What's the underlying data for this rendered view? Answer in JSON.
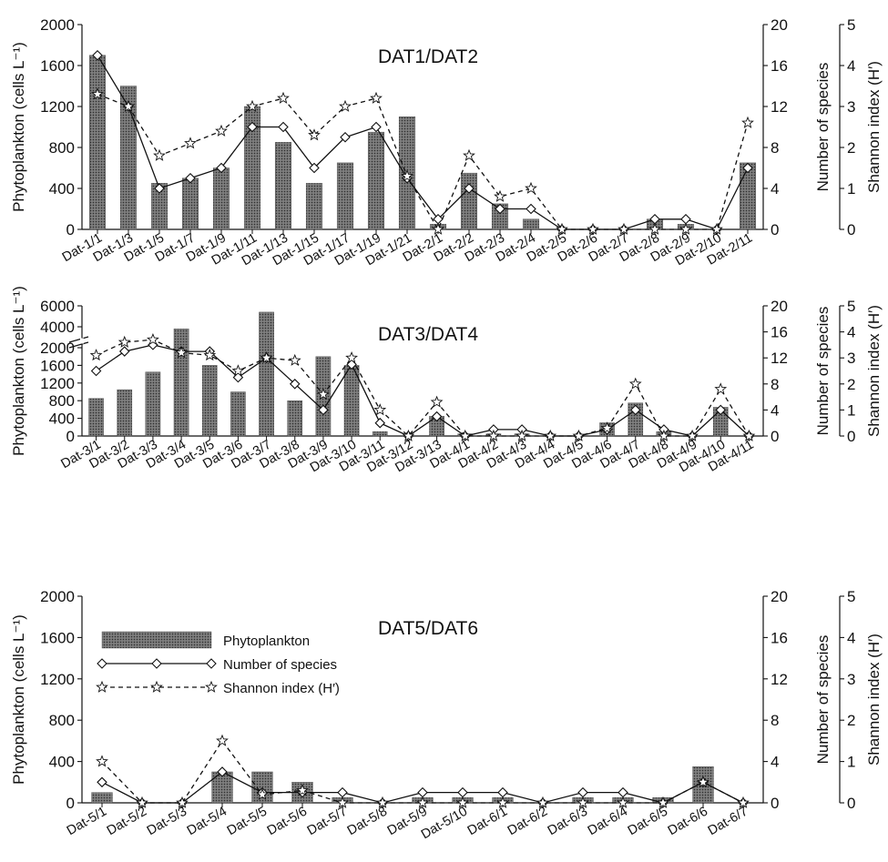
{
  "labels": {
    "yaxis_left": "Phytoplankton (cells L⁻¹)",
    "yaxis_species": "Number of species",
    "yaxis_shannon": "Shannon index (H′)"
  },
  "chart_data": [
    {
      "type": "bar",
      "title": "DAT1/DAT2",
      "categories": [
        "Dat-1/1",
        "Dat-1/3",
        "Dat-1/5",
        "Dat-1/7",
        "Dat-1/9",
        "Dat-1/11",
        "Dat-1/13",
        "Dat-1/15",
        "Dat-1/17",
        "Dat-1/19",
        "Dat-1/21",
        "Dat-2/1",
        "Dat-2/2",
        "Dat-2/3",
        "Dat-2/4",
        "Dat-2/5",
        "Dat-2/6",
        "Dat-2/7",
        "Dat-2/8",
        "Dat-2/9",
        "Dat-2/10",
        "Dat-2/11"
      ],
      "y_left_ticks": [
        "0",
        "400",
        "800",
        "1200",
        "1600",
        "2000"
      ],
      "y_mid_ticks": [
        "0",
        "4",
        "8",
        "12",
        "16",
        "20"
      ],
      "y_right_ticks": [
        "0",
        "1",
        "2",
        "3",
        "4",
        "5"
      ],
      "ylim_left": [
        0,
        2000
      ],
      "ylim_species": [
        0,
        20
      ],
      "ylim_shannon": [
        0,
        5
      ],
      "series": [
        {
          "name": "Phytoplankton",
          "kind": "bar",
          "values": [
            1700,
            1400,
            450,
            500,
            600,
            1200,
            850,
            450,
            650,
            950,
            1100,
            50,
            550,
            250,
            100,
            0,
            0,
            0,
            100,
            50,
            0,
            650
          ]
        },
        {
          "name": "Number of species",
          "kind": "line",
          "values": [
            17,
            12,
            4,
            5,
            6,
            10,
            10,
            6,
            9,
            10,
            5,
            1,
            4,
            2,
            2,
            0,
            0,
            0,
            1,
            1,
            0,
            6
          ]
        },
        {
          "name": "Shannon index (H′)",
          "kind": "line",
          "values": [
            3.3,
            3.0,
            1.8,
            2.1,
            2.4,
            3.0,
            3.2,
            2.3,
            3.0,
            3.2,
            1.3,
            0,
            1.8,
            0.8,
            1.0,
            0,
            0,
            0,
            0,
            0,
            0,
            2.6
          ]
        }
      ]
    },
    {
      "type": "bar",
      "title": "DAT3/DAT4",
      "categories": [
        "Dat-3/1",
        "Dat-3/2",
        "Dat-3/3",
        "Dat-3/4",
        "Dat-3/5",
        "Dat-3/6",
        "Dat-3/7",
        "Dat-3/8",
        "Dat-3/9",
        "Dat-3/10",
        "Dat-3/11",
        "Dat-3/12",
        "Dat-3/13",
        "Dat-4/1",
        "Dat-4/2",
        "Dat-4/3",
        "Dat-4/4",
        "Dat-4/5",
        "Dat-4/6",
        "Dat-4/7",
        "Dat-4/8",
        "Dat-4/9",
        "Dat-4/10",
        "Dat-4/11"
      ],
      "y_left_ticks": [
        "0",
        "400",
        "800",
        "1200",
        "1600",
        "2000",
        "4000",
        "6000"
      ],
      "y_mid_ticks": [
        "0",
        "4",
        "8",
        "12",
        "16",
        "20"
      ],
      "y_right_ticks": [
        "0",
        "1",
        "2",
        "3",
        "4",
        "5"
      ],
      "ylim_left": [
        0,
        6000
      ],
      "ylim_species": [
        0,
        20
      ],
      "ylim_shannon": [
        0,
        5
      ],
      "series": [
        {
          "name": "Phytoplankton",
          "kind": "bar",
          "values": [
            850,
            1050,
            1450,
            3800,
            1600,
            1000,
            5400,
            800,
            1800,
            1600,
            100,
            0,
            450,
            50,
            50,
            50,
            0,
            0,
            300,
            750,
            100,
            0,
            650,
            0
          ]
        },
        {
          "name": "Number of species",
          "kind": "line",
          "values": [
            10,
            13,
            14,
            13,
            13,
            9,
            12,
            8,
            4,
            11,
            2,
            0,
            3,
            0,
            1,
            1,
            0,
            0,
            1,
            4,
            1,
            0,
            4,
            0
          ]
        },
        {
          "name": "Shannon index (H′)",
          "kind": "line",
          "values": [
            3.1,
            3.6,
            3.7,
            3.2,
            3.1,
            2.5,
            3.0,
            2.9,
            1.6,
            3.0,
            1.0,
            0,
            1.3,
            0,
            0,
            0,
            0,
            0,
            0.3,
            2.0,
            0,
            0,
            1.8,
            0
          ]
        }
      ]
    },
    {
      "type": "bar",
      "title": "DAT5/DAT6",
      "categories": [
        "Dat-5/1",
        "Dat-5/2",
        "Dat-5/3",
        "Dat-5/4",
        "Dat-5/5",
        "Dat-5/6",
        "Dat-5/7",
        "Dat-5/8",
        "Dat-5/9",
        "Dat-5/10",
        "Dat-6/1",
        "Dat-6/2",
        "Dat-6/3",
        "Dat-6/4",
        "Dat-6/5",
        "Dat-6/6",
        "Dat-6/7"
      ],
      "y_left_ticks": [
        "0",
        "400",
        "800",
        "1200",
        "1600",
        "2000"
      ],
      "y_mid_ticks": [
        "0",
        "4",
        "8",
        "12",
        "16",
        "20"
      ],
      "y_right_ticks": [
        "0",
        "1",
        "2",
        "3",
        "4",
        "5"
      ],
      "ylim_left": [
        0,
        2000
      ],
      "ylim_species": [
        0,
        20
      ],
      "ylim_shannon": [
        0,
        5
      ],
      "legend": {
        "placement": "upper-left",
        "entries": [
          "Phytoplankton",
          "Number of species",
          "Shannon index (H′)"
        ]
      },
      "series": [
        {
          "name": "Phytoplankton",
          "kind": "bar",
          "values": [
            100,
            0,
            0,
            300,
            300,
            200,
            50,
            0,
            50,
            50,
            50,
            0,
            50,
            50,
            50,
            350,
            0
          ]
        },
        {
          "name": "Number of species",
          "kind": "line",
          "values": [
            2,
            0,
            0,
            3,
            1,
            1,
            1,
            0,
            1,
            1,
            1,
            0,
            1,
            1,
            0,
            2,
            0
          ]
        },
        {
          "name": "Shannon index (H′)",
          "kind": "line",
          "values": [
            1.0,
            0,
            0,
            1.5,
            0.2,
            0.3,
            0,
            0,
            0,
            0,
            0,
            0,
            0,
            0,
            0,
            0.5,
            0
          ]
        }
      ]
    }
  ]
}
